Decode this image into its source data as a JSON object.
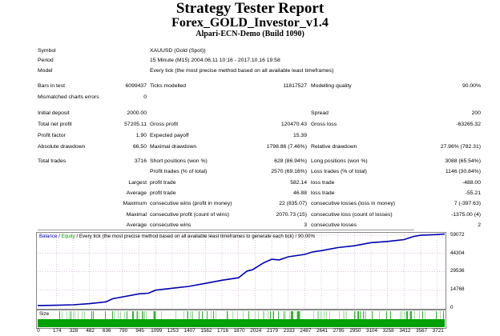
{
  "header": {
    "title": "Strategy Tester Report",
    "expert": "Forex_GOLD_Investor_v1.4",
    "server": "Alpari-ECN-Demo (Build 1090)"
  },
  "rows": [
    [
      "Symbol",
      "",
      "XAUUSD (Gold (Spot))",
      "",
      "",
      ""
    ],
    [
      "Period",
      "",
      "15 Minute (M15) 2004.06.11 10:16 - 2017.10.16 19:58",
      "",
      "",
      ""
    ],
    [
      "Model",
      "",
      "Every tick (the most precise method based on all available least timeframes)",
      "",
      "",
      ""
    ],
    [
      "Bars in test",
      "6099437",
      "Ticks modelled",
      "11817527",
      "Modelling quality",
      "90.00%"
    ],
    [
      "Mismatched charts errors",
      "0",
      "",
      "",
      "",
      ""
    ],
    [
      "Initial deposit",
      "2000.00",
      "",
      "",
      "Spread",
      "200"
    ],
    [
      "Total net profit",
      "57205.11",
      "Gross profit",
      "120470.43",
      "Gross loss",
      "-63265.32"
    ],
    [
      "Profit factor",
      "1.90",
      "Expected payoff",
      "15.39",
      "",
      ""
    ],
    [
      "Absolute drawdown",
      "66.50",
      "Maximal drawdown",
      "1798.86 (7.46%)",
      "Relative drawdown",
      "27.96% (782.31)"
    ],
    [
      "Total trades",
      "3716",
      "Short positions (won %)",
      "628 (86.94%)",
      "Long positions (won %)",
      "3088 (65.54%)"
    ],
    [
      "",
      "",
      "Profit trades (% of total)",
      "2570 (69.16%)",
      "Loss trades (% of total)",
      "1146 (30.84%)"
    ],
    [
      "",
      "Largest",
      "profit trade",
      "582.14",
      "loss trade",
      "-488.00"
    ],
    [
      "",
      "Average",
      "profit trade",
      "46.88",
      "loss trade",
      "-55.21"
    ],
    [
      "",
      "Maximum",
      "consecutive wins (profit in money)",
      "22 (835.07)",
      "consecutive losses (loss in money)",
      "7 (-397.63)"
    ],
    [
      "",
      "Maximal",
      "consecutive profit (count of wins)",
      "2070.73 (15)",
      "consecutive loss (count of losses)",
      "-1375.00 (4)"
    ],
    [
      "",
      "Average",
      "consecutive wins",
      "3",
      "consecutive losses",
      "2"
    ]
  ],
  "chart_data": {
    "type": "line",
    "legend": {
      "balance": "Balance",
      "sep1": " / ",
      "equity": "Equity",
      "rest": " / Every tick (the most precise method based on all available least timeframes to generate each tick) / 90.00%"
    },
    "size_label": "Size",
    "colors": {
      "balance": "#0000b0",
      "equity": "#00a000",
      "size": "#00a000",
      "grid": "#c8a0c8"
    },
    "ylim": [
      0,
      61000
    ],
    "y_ticks": [
      "59072",
      "44304",
      "29536",
      "14768",
      "0"
    ],
    "y_tick_values": [
      59072,
      44304,
      29536,
      14768,
      0
    ],
    "xlim": [
      0,
      3790
    ],
    "x_ticks": [
      "0",
      "174",
      "328",
      "482",
      "636",
      "790",
      "945",
      "1099",
      "1253",
      "1407",
      "1562",
      "1716",
      "1870",
      "2024",
      "2179",
      "2333",
      "2487",
      "2641",
      "2795",
      "2950",
      "3104",
      "3258",
      "3412",
      "3567",
      "3721"
    ],
    "series": [
      {
        "name": "Balance",
        "x": [
          0,
          174,
          328,
          482,
          636,
          700,
          790,
          945,
          1030,
          1099,
          1253,
          1407,
          1562,
          1716,
          1870,
          1950,
          2000,
          2100,
          2179,
          2250,
          2333,
          2487,
          2560,
          2641,
          2795,
          2950,
          3104,
          3258,
          3412,
          3500,
          3567,
          3721,
          3790
        ],
        "y": [
          2000,
          2200,
          2600,
          3500,
          5000,
          7500,
          9000,
          11500,
          12000,
          14500,
          16000,
          17500,
          20000,
          22500,
          24500,
          30000,
          31000,
          36500,
          39500,
          39000,
          41500,
          43500,
          45500,
          46500,
          49000,
          50500,
          53000,
          54000,
          55500,
          58000,
          59000,
          59600,
          60000
        ]
      }
    ]
  }
}
